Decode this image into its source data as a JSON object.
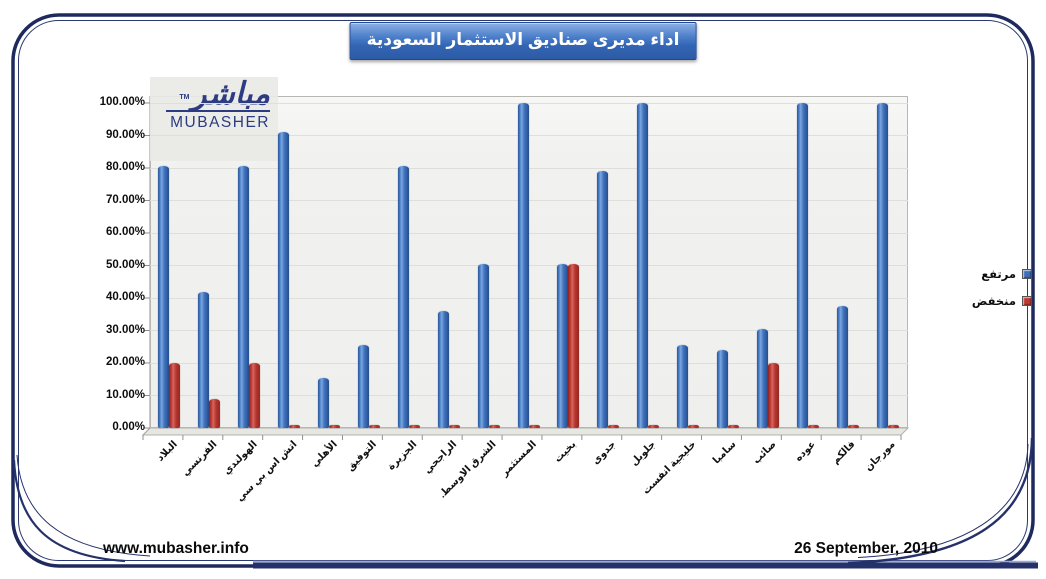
{
  "page": {
    "title": "اداء مديرى صناديق الاستثمار السعودية",
    "footer_left": "www.mubasher.info",
    "footer_right": "26 September, 2010"
  },
  "logo": {
    "arabic": "مباشر",
    "latin": "MUBASHER",
    "tm": "TM"
  },
  "legend": [
    {
      "label": "مرتفع",
      "color": "#3e6fb8"
    },
    {
      "label": "منخفض",
      "color": "#c0392f"
    }
  ],
  "colors": {
    "frame_navy": "#1e2a5e",
    "bar_high": "#3a6db7",
    "bar_low": "#c0392f",
    "plot_bg": "#f1f1ef",
    "title_bg": "#3265b4",
    "title_text": "#ffffff"
  },
  "chart_data": {
    "type": "bar",
    "title": "اداء مديرى صناديق الاستثمار السعودية",
    "categories": [
      "البلاد",
      "الفرنسي",
      "الهولندي",
      "اتش اس بي سي",
      "الأهلي",
      "التوفيق",
      "الجزيرة",
      "الراجحي",
      "الشرق الاوسط.",
      "المستثمر",
      "بخيت",
      "جدوى",
      "جلوبل",
      "خليجية انفست",
      "سامبا",
      "صائب",
      "عوده",
      "فالكم",
      "مورجان"
    ],
    "series": [
      {
        "name": "مرتفع",
        "color": "#3a6db7",
        "values": [
          80.5,
          42,
          80.5,
          91,
          15.5,
          25.5,
          80.5,
          36,
          50.5,
          100,
          50.5,
          79,
          100,
          25.5,
          24,
          30.5,
          100,
          37.5,
          100
        ]
      },
      {
        "name": "منخفض",
        "color": "#c0392f",
        "values": [
          20,
          9,
          20,
          1,
          1,
          1,
          1,
          1,
          1,
          1,
          50.5,
          1,
          1,
          1,
          1,
          20,
          1,
          1,
          1
        ]
      }
    ],
    "y_ticks": [
      "0.00%",
      "10.00%",
      "20.00%",
      "30.00%",
      "40.00%",
      "50.00%",
      "60.00%",
      "70.00%",
      "80.00%",
      "90.00%",
      "100.00%"
    ],
    "ylim": [
      0,
      100
    ],
    "unit": "percent",
    "grid": "faint-horizontal",
    "legend_position": "right",
    "bar_style": "3d-cylinder"
  }
}
